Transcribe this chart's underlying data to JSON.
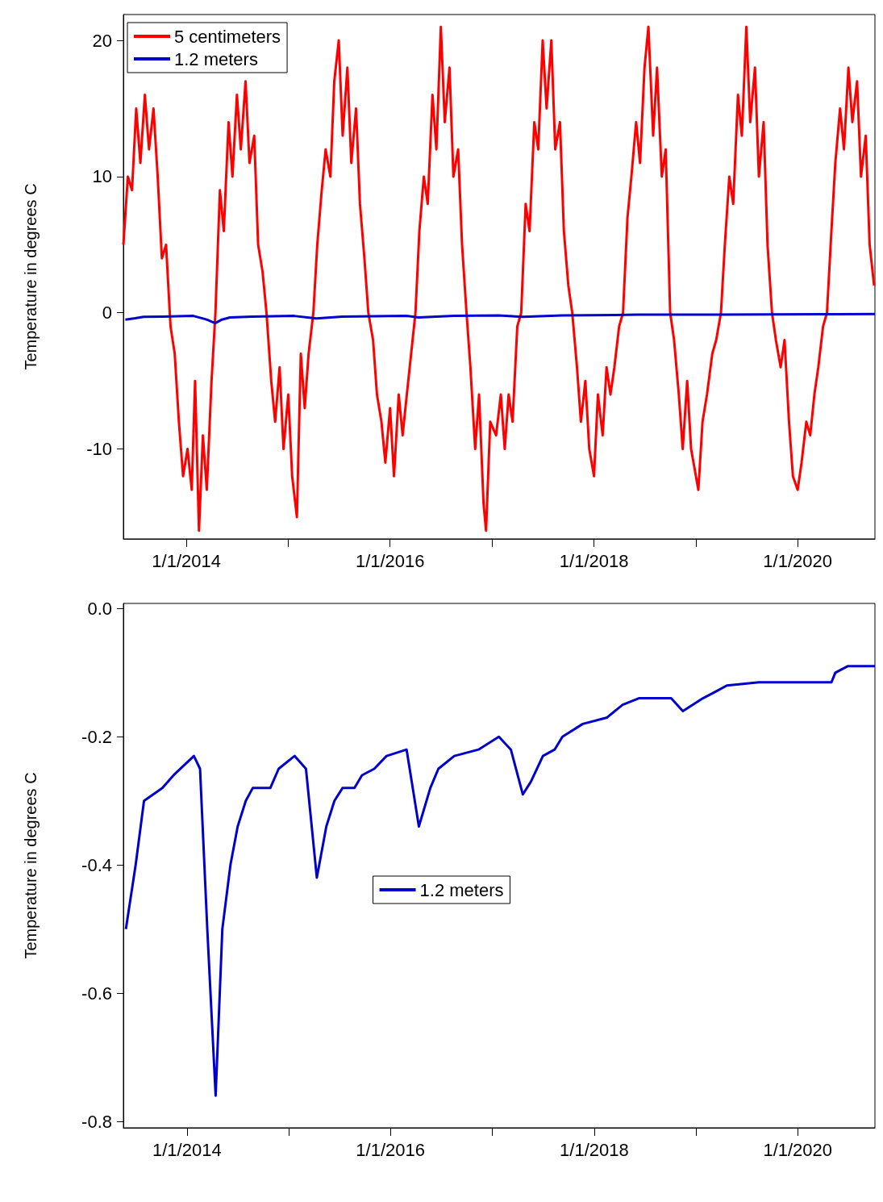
{
  "chart_data": [
    {
      "type": "line",
      "ylabel": "Temperature in degrees C",
      "xlim": [
        "2013-05-20",
        "2020-10-04"
      ],
      "xticks": [
        {
          "value": "2014-01-01",
          "label": "1/1/2014"
        },
        {
          "value": "2015-01-01",
          "label": null
        },
        {
          "value": "2016-01-01",
          "label": "1/1/2016"
        },
        {
          "value": "2017-01-01",
          "label": null
        },
        {
          "value": "2018-01-01",
          "label": "1/1/2018"
        },
        {
          "value": "2019-01-01",
          "label": null
        },
        {
          "value": "2020-01-01",
          "label": "1/1/2020"
        }
      ],
      "ylim": [
        -16.6,
        21.9
      ],
      "yticks": [
        -10,
        0,
        10,
        20
      ],
      "grid": false,
      "legend": "top left",
      "series": [
        {
          "name": "5 centimeters",
          "color": "#ff0000",
          "x": [
            "2013-05-20",
            "2013-06-05",
            "2013-06-20",
            "2013-07-05",
            "2013-07-20",
            "2013-08-05",
            "2013-08-20",
            "2013-09-05",
            "2013-09-20",
            "2013-10-05",
            "2013-10-20",
            "2013-11-05",
            "2013-11-20",
            "2013-12-05",
            "2013-12-20",
            "2014-01-05",
            "2014-01-20",
            "2014-02-01",
            "2014-02-15",
            "2014-03-01",
            "2014-03-15",
            "2014-04-01",
            "2014-04-15",
            "2014-05-01",
            "2014-05-15",
            "2014-06-01",
            "2014-06-15",
            "2014-07-01",
            "2014-07-15",
            "2014-08-01",
            "2014-08-15",
            "2014-09-01",
            "2014-09-15",
            "2014-10-01",
            "2014-10-15",
            "2014-11-01",
            "2014-11-15",
            "2014-12-01",
            "2014-12-15",
            "2015-01-01",
            "2015-01-15",
            "2015-02-01",
            "2015-02-15",
            "2015-03-01",
            "2015-03-15",
            "2015-04-01",
            "2015-04-15",
            "2015-05-01",
            "2015-05-15",
            "2015-06-01",
            "2015-06-15",
            "2015-07-01",
            "2015-07-15",
            "2015-08-01",
            "2015-08-15",
            "2015-09-01",
            "2015-09-15",
            "2015-10-01",
            "2015-10-15",
            "2015-11-01",
            "2015-11-15",
            "2015-12-01",
            "2015-12-15",
            "2016-01-01",
            "2016-01-15",
            "2016-02-01",
            "2016-02-15",
            "2016-03-01",
            "2016-04-01",
            "2016-04-15",
            "2016-05-01",
            "2016-05-15",
            "2016-06-01",
            "2016-06-15",
            "2016-07-01",
            "2016-07-15",
            "2016-08-01",
            "2016-08-15",
            "2016-09-01",
            "2016-09-15",
            "2016-10-01",
            "2016-10-15",
            "2016-11-01",
            "2016-11-15",
            "2016-12-01",
            "2016-12-10",
            "2016-12-25",
            "2017-01-15",
            "2017-02-01",
            "2017-02-15",
            "2017-03-01",
            "2017-03-15",
            "2017-04-01",
            "2017-04-15",
            "2017-05-01",
            "2017-05-15",
            "2017-06-01",
            "2017-06-15",
            "2017-07-01",
            "2017-07-15",
            "2017-08-01",
            "2017-08-15",
            "2017-09-01",
            "2017-09-15",
            "2017-10-01",
            "2017-10-15",
            "2017-11-01",
            "2017-11-15",
            "2017-12-01",
            "2017-12-15",
            "2018-01-01",
            "2018-01-15",
            "2018-02-01",
            "2018-02-15",
            "2018-03-01",
            "2018-03-15",
            "2018-04-01",
            "2018-04-15",
            "2018-05-01",
            "2018-05-15",
            "2018-06-01",
            "2018-06-15",
            "2018-07-01",
            "2018-07-15",
            "2018-08-01",
            "2018-08-15",
            "2018-09-01",
            "2018-09-15",
            "2018-10-01",
            "2018-10-15",
            "2018-11-01",
            "2018-11-15",
            "2018-12-01",
            "2018-12-15",
            "2019-01-10",
            "2019-01-25",
            "2019-02-10",
            "2019-03-01",
            "2019-03-15",
            "2019-04-01",
            "2019-04-15",
            "2019-05-01",
            "2019-05-15",
            "2019-06-01",
            "2019-06-15",
            "2019-07-01",
            "2019-07-15",
            "2019-08-01",
            "2019-08-15",
            "2019-09-01",
            "2019-09-15",
            "2019-10-01",
            "2019-10-15",
            "2019-11-01",
            "2019-11-15",
            "2019-12-01",
            "2019-12-15",
            "2020-01-01",
            "2020-01-15",
            "2020-02-01",
            "2020-02-15",
            "2020-03-01",
            "2020-03-15",
            "2020-04-01",
            "2020-04-15",
            "2020-05-01",
            "2020-05-15",
            "2020-06-01",
            "2020-06-15",
            "2020-07-01",
            "2020-07-15",
            "2020-08-01",
            "2020-08-15",
            "2020-09-01",
            "2020-09-15",
            "2020-10-01"
          ],
          "values": [
            5,
            10,
            9,
            15,
            11,
            16,
            12,
            15,
            10,
            4,
            5,
            -1,
            -3,
            -8,
            -12,
            -10,
            -13,
            -5,
            -16,
            -9,
            -13,
            -5,
            0,
            9,
            6,
            14,
            10,
            16,
            12,
            17,
            11,
            13,
            5,
            3,
            0,
            -5,
            -8,
            -4,
            -10,
            -6,
            -12,
            -15,
            -3,
            -7,
            -3,
            0,
            5,
            9,
            12,
            10,
            17,
            20,
            13,
            18,
            11,
            15,
            8,
            4,
            0,
            -2,
            -6,
            -8,
            -11,
            -7,
            -12,
            -6,
            -9,
            -6,
            0,
            6,
            10,
            8,
            16,
            12,
            21,
            14,
            18,
            10,
            12,
            5,
            0,
            -4,
            -10,
            -6,
            -14,
            -16,
            -8,
            -9,
            -6,
            -10,
            -6,
            -8,
            -1,
            0,
            8,
            6,
            14,
            12,
            20,
            15,
            20,
            12,
            14,
            6,
            2,
            0,
            -4,
            -8,
            -5,
            -10,
            -12,
            -6,
            -9,
            -4,
            -6,
            -4,
            -1,
            0,
            7,
            10,
            14,
            11,
            18,
            21,
            13,
            18,
            10,
            12,
            0,
            -2,
            -6,
            -10,
            -5,
            -10,
            -13,
            -8,
            -6,
            -3,
            -2,
            0,
            5,
            10,
            8,
            16,
            13,
            21,
            14,
            18,
            10,
            14,
            5,
            0,
            -2,
            -4,
            -2,
            -8,
            -12,
            -13,
            -11,
            -8,
            -9,
            -6,
            -4,
            -1,
            0,
            6,
            11,
            15,
            12,
            18,
            14,
            17,
            10,
            13,
            5,
            2
          ]
        },
        {
          "name": "1.2 meters",
          "color": "#0000cc",
          "x": [
            "2013-05-27",
            "2013-07-01",
            "2013-07-31",
            "2013-10-05",
            "2014-01-26",
            "2014-03-15",
            "2014-04-14",
            "2014-05-08",
            "2014-06-06",
            "2014-08-25",
            "2015-01-22",
            "2015-04-12",
            "2015-07-13",
            "2016-02-28",
            "2016-04-12",
            "2016-08-17",
            "2017-01-24",
            "2017-04-20",
            "2017-09-09",
            "2018-06-10",
            "2019-03-11",
            "2020-05-15",
            "2020-10-04"
          ],
          "values": [
            -0.5,
            -0.4,
            -0.3,
            -0.28,
            -0.23,
            -0.5,
            -0.76,
            -0.5,
            -0.34,
            -0.28,
            -0.23,
            -0.42,
            -0.28,
            -0.22,
            -0.34,
            -0.23,
            -0.2,
            -0.29,
            -0.2,
            -0.14,
            -0.13,
            -0.1,
            -0.09
          ]
        }
      ]
    },
    {
      "type": "line",
      "ylabel": "Temperature in degrees C",
      "xlim": [
        "2013-05-18",
        "2020-10-04"
      ],
      "xticks": [
        {
          "value": "2014-01-01",
          "label": "1/1/2014"
        },
        {
          "value": "2015-01-01",
          "label": null
        },
        {
          "value": "2016-01-01",
          "label": "1/1/2016"
        },
        {
          "value": "2017-01-01",
          "label": null
        },
        {
          "value": "2018-01-01",
          "label": "1/1/2018"
        },
        {
          "value": "2019-01-01",
          "label": null
        },
        {
          "value": "2020-01-01",
          "label": "1/1/2020"
        }
      ],
      "ylim": [
        -0.81,
        0.008
      ],
      "yticks": [
        {
          "value": -0.8,
          "label": "-0.8"
        },
        {
          "value": -0.6,
          "label": "-0.6"
        },
        {
          "value": -0.4,
          "label": "-0.4"
        },
        {
          "value": -0.2,
          "label": "-0.2"
        },
        {
          "value": 0,
          "label": "0.0"
        }
      ],
      "grid": false,
      "legend": "center",
      "series": [
        {
          "name": "1.2 meters",
          "color": "#0000cc",
          "x": [
            "2013-05-27",
            "2013-07-01",
            "2013-07-31",
            "2013-10-05",
            "2013-11-14",
            "2014-01-26",
            "2014-02-17",
            "2014-03-15",
            "2014-04-14",
            "2014-05-08",
            "2014-06-06",
            "2014-07-02",
            "2014-07-31",
            "2014-08-25",
            "2014-10-27",
            "2014-11-26",
            "2015-01-22",
            "2015-03-04",
            "2015-04-12",
            "2015-05-16",
            "2015-06-14",
            "2015-07-13",
            "2015-08-25",
            "2015-09-21",
            "2015-11-04",
            "2015-12-18",
            "2016-02-28",
            "2016-04-12",
            "2016-05-23",
            "2016-06-21",
            "2016-08-17",
            "2016-11-12",
            "2017-01-24",
            "2017-03-08",
            "2017-04-20",
            "2017-05-19",
            "2017-07-01",
            "2017-08-12",
            "2017-09-09",
            "2017-11-21",
            "2018-02-16",
            "2018-04-13",
            "2018-06-10",
            "2018-10-04",
            "2018-11-15",
            "2019-01-26",
            "2019-03-11",
            "2019-04-22",
            "2019-08-15",
            "2020-05-01",
            "2020-05-15",
            "2020-06-28",
            "2020-10-04"
          ],
          "values": [
            -0.5,
            -0.4,
            -0.3,
            -0.28,
            -0.26,
            -0.23,
            -0.25,
            -0.5,
            -0.76,
            -0.5,
            -0.4,
            -0.34,
            -0.3,
            -0.28,
            -0.28,
            -0.25,
            -0.23,
            -0.25,
            -0.42,
            -0.34,
            -0.3,
            -0.28,
            -0.28,
            -0.26,
            -0.25,
            -0.23,
            -0.22,
            -0.34,
            -0.28,
            -0.25,
            -0.23,
            -0.22,
            -0.2,
            -0.22,
            -0.29,
            -0.27,
            -0.23,
            -0.22,
            -0.2,
            -0.18,
            -0.17,
            -0.15,
            -0.14,
            -0.14,
            -0.16,
            -0.14,
            -0.13,
            -0.12,
            -0.115,
            -0.115,
            -0.1,
            -0.09,
            -0.09
          ]
        }
      ]
    }
  ]
}
